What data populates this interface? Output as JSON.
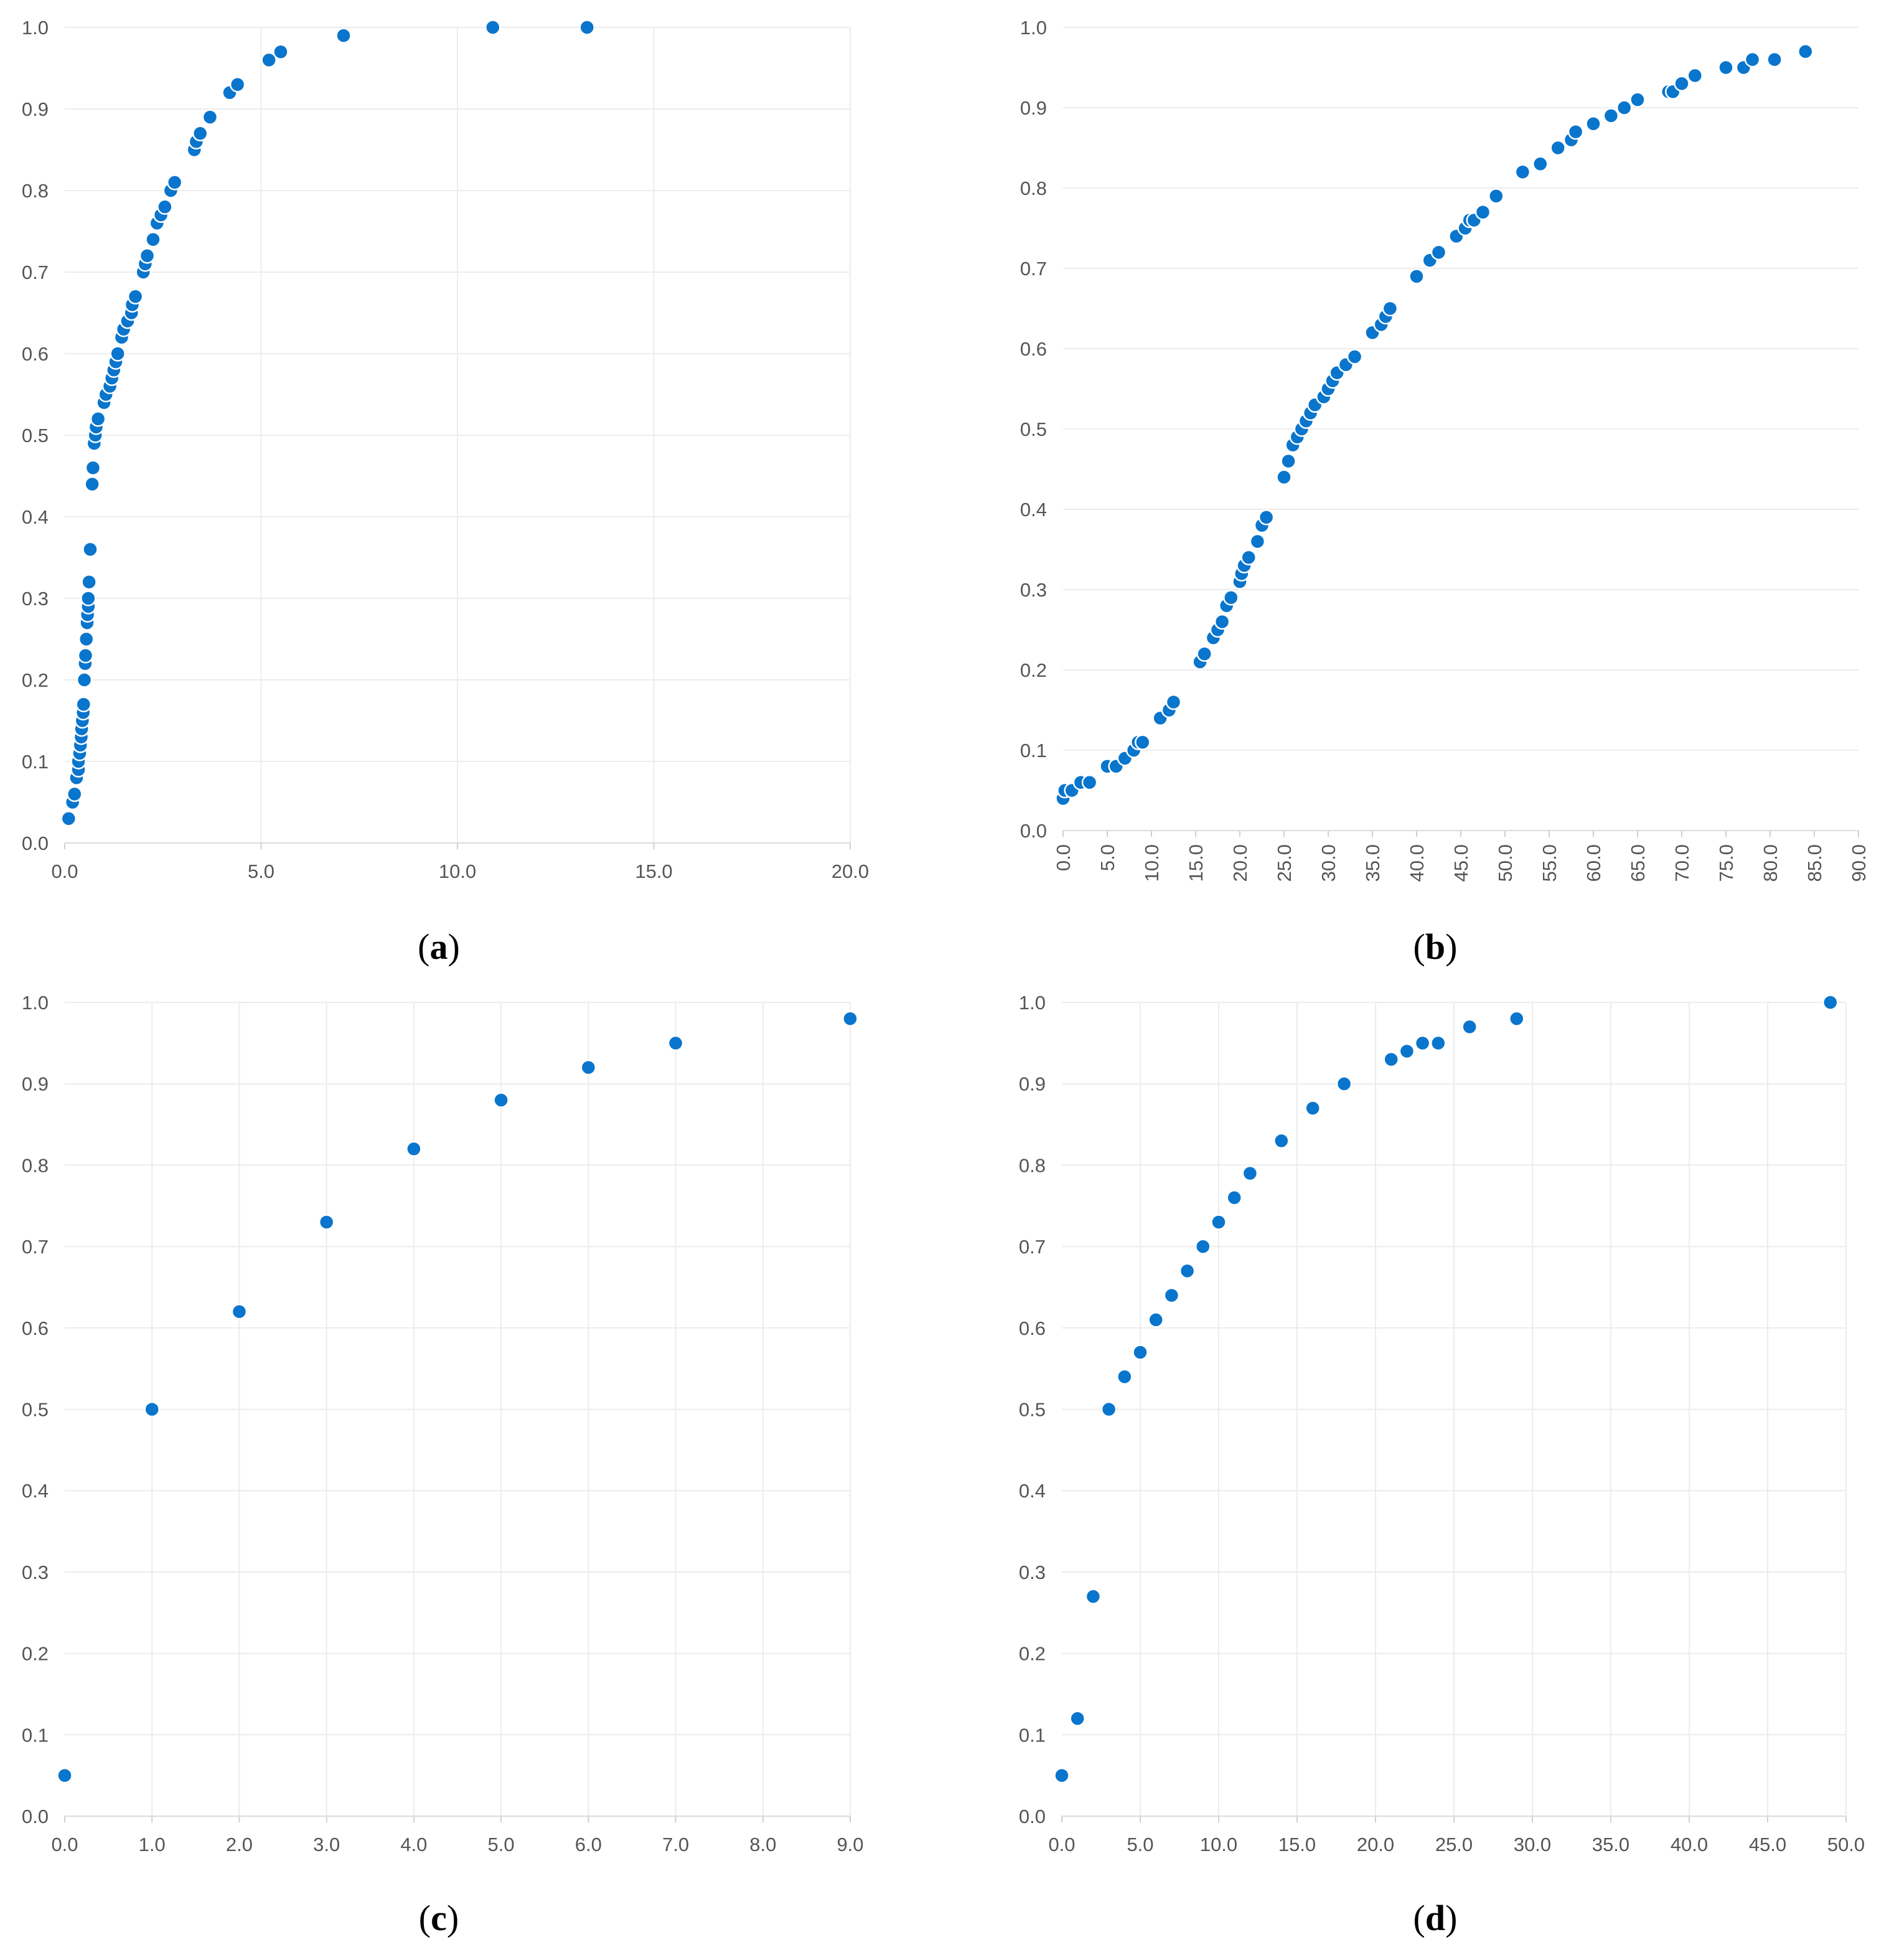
{
  "colors": {
    "point": "#0a75cc",
    "point_edge": "#ffffff"
  },
  "chart_data": [
    {
      "panel_label": "a",
      "type": "scatter",
      "xlim": [
        0,
        20
      ],
      "ylim": [
        0,
        1
      ],
      "x_ticks": [
        "0.0",
        "5.0",
        "10.0",
        "15.0",
        "20.0"
      ],
      "y_ticks": [
        "0.0",
        "0.1",
        "0.2",
        "0.3",
        "0.4",
        "0.5",
        "0.6",
        "0.7",
        "0.8",
        "0.9",
        "1.0"
      ],
      "x_tick_rotation": 0,
      "grid": true,
      "points": [
        [
          0.1,
          0.03
        ],
        [
          0.2,
          0.05
        ],
        [
          0.25,
          0.06
        ],
        [
          0.3,
          0.08
        ],
        [
          0.35,
          0.09
        ],
        [
          0.35,
          0.1
        ],
        [
          0.38,
          0.11
        ],
        [
          0.4,
          0.12
        ],
        [
          0.42,
          0.13
        ],
        [
          0.43,
          0.14
        ],
        [
          0.45,
          0.15
        ],
        [
          0.47,
          0.16
        ],
        [
          0.48,
          0.17
        ],
        [
          0.5,
          0.2
        ],
        [
          0.52,
          0.22
        ],
        [
          0.53,
          0.23
        ],
        [
          0.55,
          0.25
        ],
        [
          0.57,
          0.27
        ],
        [
          0.58,
          0.28
        ],
        [
          0.6,
          0.29
        ],
        [
          0.6,
          0.3
        ],
        [
          0.62,
          0.32
        ],
        [
          0.65,
          0.36
        ],
        [
          0.7,
          0.44
        ],
        [
          0.72,
          0.46
        ],
        [
          0.75,
          0.49
        ],
        [
          0.78,
          0.5
        ],
        [
          0.8,
          0.51
        ],
        [
          0.85,
          0.52
        ],
        [
          1.0,
          0.54
        ],
        [
          1.05,
          0.55
        ],
        [
          1.15,
          0.56
        ],
        [
          1.2,
          0.57
        ],
        [
          1.25,
          0.58
        ],
        [
          1.3,
          0.59
        ],
        [
          1.35,
          0.6
        ],
        [
          1.45,
          0.62
        ],
        [
          1.5,
          0.63
        ],
        [
          1.6,
          0.64
        ],
        [
          1.7,
          0.65
        ],
        [
          1.72,
          0.66
        ],
        [
          1.8,
          0.67
        ],
        [
          2.0,
          0.7
        ],
        [
          2.05,
          0.71
        ],
        [
          2.1,
          0.72
        ],
        [
          2.25,
          0.74
        ],
        [
          2.35,
          0.76
        ],
        [
          2.45,
          0.77
        ],
        [
          2.55,
          0.78
        ],
        [
          2.7,
          0.8
        ],
        [
          2.8,
          0.81
        ],
        [
          3.3,
          0.85
        ],
        [
          3.35,
          0.86
        ],
        [
          3.45,
          0.87
        ],
        [
          3.7,
          0.89
        ],
        [
          4.2,
          0.92
        ],
        [
          4.4,
          0.93
        ],
        [
          5.2,
          0.96
        ],
        [
          5.5,
          0.97
        ],
        [
          7.1,
          0.99
        ],
        [
          10.9,
          1.0
        ],
        [
          13.3,
          1.0
        ]
      ]
    },
    {
      "panel_label": "b",
      "type": "scatter",
      "xlim": [
        0,
        90
      ],
      "ylim": [
        0,
        1
      ],
      "x_ticks": [
        "0.0",
        "5.0",
        "10.0",
        "15.0",
        "20.0",
        "25.0",
        "30.0",
        "35.0",
        "40.0",
        "45.0",
        "50.0",
        "55.0",
        "60.0",
        "65.0",
        "70.0",
        "75.0",
        "80.0",
        "85.0",
        "90.0"
      ],
      "y_ticks": [
        "0.0",
        "0.1",
        "0.2",
        "0.3",
        "0.4",
        "0.5",
        "0.6",
        "0.7",
        "0.8",
        "0.9",
        "1.0"
      ],
      "x_tick_rotation": -90,
      "grid": false,
      "points": [
        [
          0,
          0.04
        ],
        [
          0.2,
          0.05
        ],
        [
          1,
          0.05
        ],
        [
          2,
          0.06
        ],
        [
          3,
          0.06
        ],
        [
          5,
          0.08
        ],
        [
          6,
          0.08
        ],
        [
          7,
          0.09
        ],
        [
          8,
          0.1
        ],
        [
          8.5,
          0.11
        ],
        [
          9,
          0.11
        ],
        [
          11,
          0.14
        ],
        [
          12,
          0.15
        ],
        [
          12.5,
          0.16
        ],
        [
          15.5,
          0.21
        ],
        [
          16,
          0.22
        ],
        [
          17,
          0.24
        ],
        [
          17.5,
          0.25
        ],
        [
          18,
          0.26
        ],
        [
          18.5,
          0.28
        ],
        [
          19,
          0.29
        ],
        [
          20,
          0.31
        ],
        [
          20.2,
          0.32
        ],
        [
          20.5,
          0.33
        ],
        [
          21,
          0.34
        ],
        [
          22,
          0.36
        ],
        [
          22.5,
          0.38
        ],
        [
          23,
          0.39
        ],
        [
          25,
          0.44
        ],
        [
          25.5,
          0.46
        ],
        [
          26,
          0.48
        ],
        [
          26.5,
          0.49
        ],
        [
          27,
          0.5
        ],
        [
          27.5,
          0.51
        ],
        [
          28,
          0.52
        ],
        [
          28.5,
          0.53
        ],
        [
          29.5,
          0.54
        ],
        [
          30,
          0.55
        ],
        [
          30.5,
          0.56
        ],
        [
          31,
          0.57
        ],
        [
          32,
          0.58
        ],
        [
          33,
          0.59
        ],
        [
          35,
          0.62
        ],
        [
          36,
          0.63
        ],
        [
          36.5,
          0.64
        ],
        [
          37,
          0.65
        ],
        [
          40,
          0.69
        ],
        [
          41.5,
          0.71
        ],
        [
          42.5,
          0.72
        ],
        [
          44.5,
          0.74
        ],
        [
          45.5,
          0.75
        ],
        [
          46,
          0.76
        ],
        [
          46.5,
          0.76
        ],
        [
          47.5,
          0.77
        ],
        [
          49,
          0.79
        ],
        [
          52,
          0.82
        ],
        [
          54,
          0.83
        ],
        [
          56,
          0.85
        ],
        [
          57.5,
          0.86
        ],
        [
          58,
          0.87
        ],
        [
          60,
          0.88
        ],
        [
          62,
          0.89
        ],
        [
          63.5,
          0.9
        ],
        [
          65,
          0.91
        ],
        [
          68.5,
          0.92
        ],
        [
          69,
          0.92
        ],
        [
          70,
          0.93
        ],
        [
          71.5,
          0.94
        ],
        [
          75,
          0.95
        ],
        [
          77,
          0.95
        ],
        [
          78,
          0.96
        ],
        [
          80.5,
          0.96
        ],
        [
          84,
          0.97
        ]
      ]
    },
    {
      "panel_label": "c",
      "type": "scatter",
      "xlim": [
        0,
        9
      ],
      "ylim": [
        0,
        1
      ],
      "x_ticks": [
        "0.0",
        "1.0",
        "2.0",
        "3.0",
        "4.0",
        "5.0",
        "6.0",
        "7.0",
        "8.0",
        "9.0"
      ],
      "y_ticks": [
        "0.0",
        "0.1",
        "0.2",
        "0.3",
        "0.4",
        "0.5",
        "0.6",
        "0.7",
        "0.8",
        "0.9",
        "1.0"
      ],
      "x_tick_rotation": 0,
      "grid": true,
      "points": [
        [
          0,
          0.05
        ],
        [
          1,
          0.5
        ],
        [
          2,
          0.62
        ],
        [
          3,
          0.73
        ],
        [
          4,
          0.82
        ],
        [
          5,
          0.88
        ],
        [
          6,
          0.92
        ],
        [
          7,
          0.95
        ],
        [
          9,
          0.98
        ]
      ]
    },
    {
      "panel_label": "d",
      "type": "scatter",
      "xlim": [
        0,
        50
      ],
      "ylim": [
        0,
        1
      ],
      "x_ticks": [
        "0.0",
        "5.0",
        "10.0",
        "15.0",
        "20.0",
        "25.0",
        "30.0",
        "35.0",
        "40.0",
        "45.0",
        "50.0"
      ],
      "y_ticks": [
        "0.0",
        "0.1",
        "0.2",
        "0.3",
        "0.4",
        "0.5",
        "0.6",
        "0.7",
        "0.8",
        "0.9",
        "1.0"
      ],
      "x_tick_rotation": 0,
      "grid": true,
      "points": [
        [
          0,
          0.05
        ],
        [
          1,
          0.12
        ],
        [
          2,
          0.27
        ],
        [
          3,
          0.5
        ],
        [
          4,
          0.54
        ],
        [
          5,
          0.57
        ],
        [
          6,
          0.61
        ],
        [
          7,
          0.64
        ],
        [
          8,
          0.67
        ],
        [
          9,
          0.7
        ],
        [
          10,
          0.73
        ],
        [
          11,
          0.76
        ],
        [
          12,
          0.79
        ],
        [
          14,
          0.83
        ],
        [
          16,
          0.87
        ],
        [
          18,
          0.9
        ],
        [
          21,
          0.93
        ],
        [
          22,
          0.94
        ],
        [
          23,
          0.95
        ],
        [
          24,
          0.95
        ],
        [
          26,
          0.97
        ],
        [
          29,
          0.98
        ],
        [
          49,
          1.0
        ]
      ]
    }
  ]
}
